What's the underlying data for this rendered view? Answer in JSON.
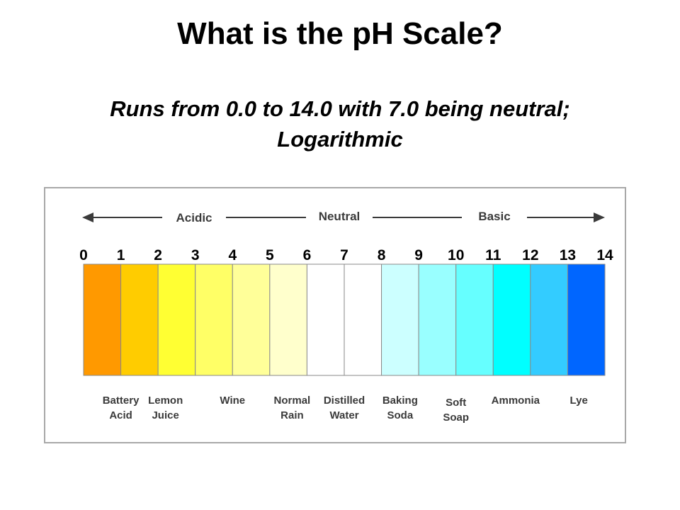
{
  "slide": {
    "title": "What is the pH Scale?",
    "subtitle_line1": "Runs from 0.0 to 14.0 with 7.0 being neutral;",
    "subtitle_line2": "Logarithmic"
  },
  "scale": {
    "header_left": "Acidic",
    "header_center": "Neutral",
    "header_right": "Basic",
    "ticks": [
      "0",
      "1",
      "2",
      "3",
      "4",
      "5",
      "6",
      "7",
      "8",
      "9",
      "10",
      "11",
      "12",
      "13",
      "14"
    ],
    "segment_colors": [
      "#ff9900",
      "#ffcc00",
      "#ffff33",
      "#ffff66",
      "#ffff99",
      "#ffffcc",
      "#ffffff",
      "#ffffff",
      "#ccffff",
      "#99ffff",
      "#66ffff",
      "#00ffff",
      "#33ccff",
      "#0066ff"
    ],
    "examples": [
      {
        "line1": "Battery",
        "line2": "Acid",
        "at": 1
      },
      {
        "line1": "Lemon",
        "line2": "Juice",
        "at": 2.2
      },
      {
        "line1": "Wine",
        "line2": "",
        "at": 4
      },
      {
        "line1": "Normal",
        "line2": "Rain",
        "at": 5.6
      },
      {
        "line1": "Distilled",
        "line2": "Water",
        "at": 7
      },
      {
        "line1": "Baking",
        "line2": "Soda",
        "at": 8.5
      },
      {
        "line1": "Soft",
        "line2": "Soap",
        "at": 10
      },
      {
        "line1": "Ammonia",
        "line2": "",
        "at": 11.6
      },
      {
        "line1": "Lye",
        "line2": "",
        "at": 13.3
      }
    ]
  }
}
